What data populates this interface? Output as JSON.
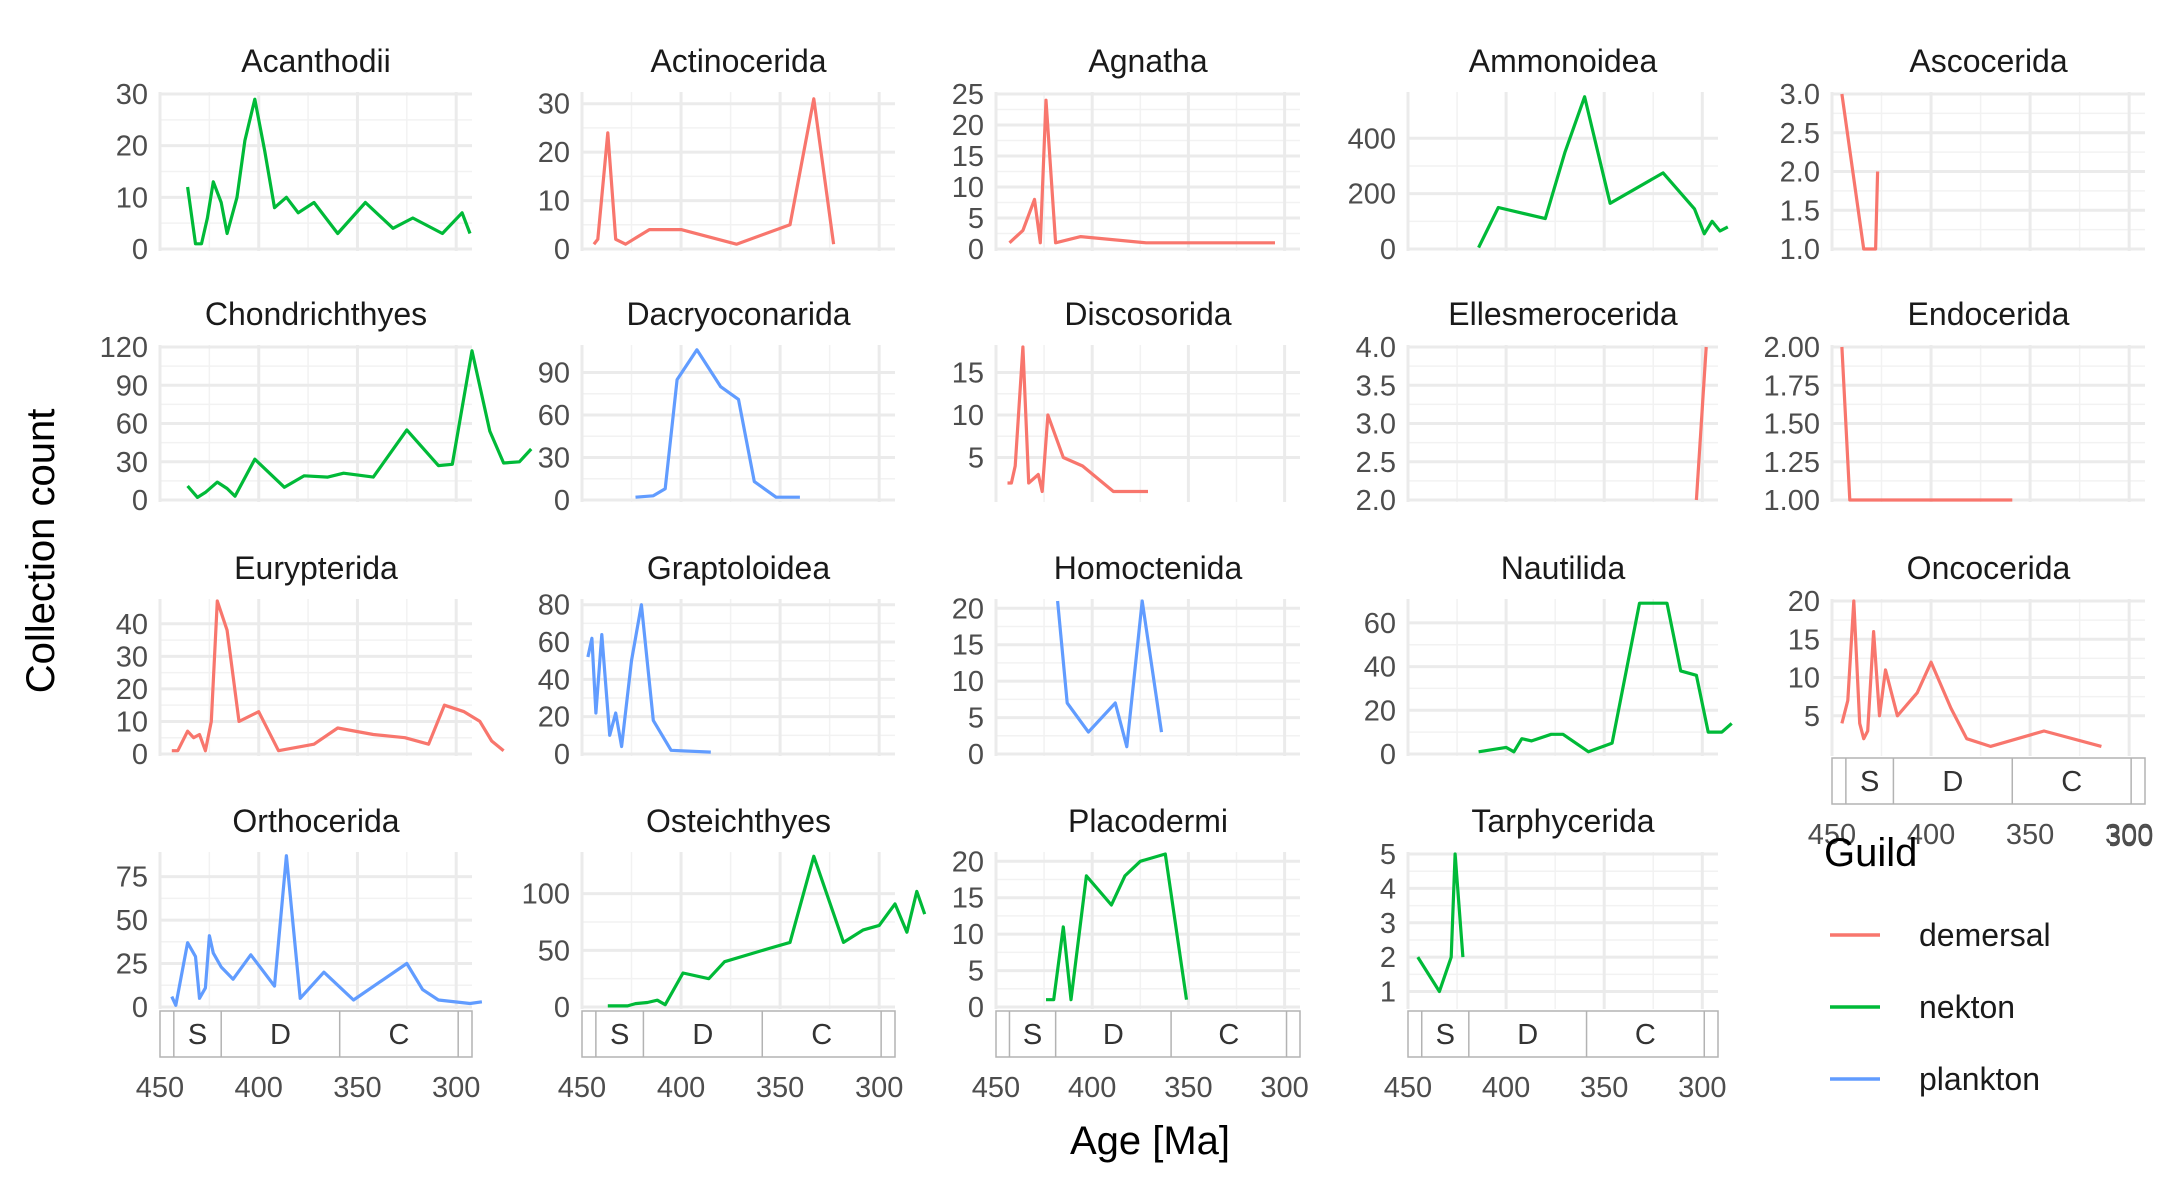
{
  "chart_data": {
    "type": "line",
    "xlabel": "Age [Ma]",
    "ylabel": "Collection count",
    "x_axis": "reversed",
    "xlim": [
      450,
      292
    ],
    "x_ticks": [
      450,
      400,
      350,
      300
    ],
    "grid": true,
    "legend": {
      "title": "Guild",
      "placement": "right",
      "entries": [
        {
          "name": "demersal",
          "color": "#F8766D"
        },
        {
          "name": "nekton",
          "color": "#00BA38"
        },
        {
          "name": "plankton",
          "color": "#619CFF"
        }
      ]
    },
    "period_bar": {
      "shown_under": [
        "Oncocerida",
        "Orthocerida",
        "Osteichthyes",
        "Placodermi",
        "Tarphycerida"
      ],
      "periods": [
        {
          "label": "",
          "start": 485,
          "end": 443
        },
        {
          "label": "S",
          "start": 443,
          "end": 419
        },
        {
          "label": "D",
          "start": 419,
          "end": 359
        },
        {
          "label": "C",
          "start": 359,
          "end": 299
        },
        {
          "label": "",
          "start": 299,
          "end": 252
        }
      ]
    },
    "panels": [
      {
        "title": "Acanthodii",
        "guild": "nekton",
        "yticks": [
          0,
          10,
          20,
          30
        ],
        "ylim": [
          0,
          30
        ],
        "points": [
          [
            436,
            12
          ],
          [
            432,
            1
          ],
          [
            429,
            1
          ],
          [
            426,
            6
          ],
          [
            423,
            13
          ],
          [
            419,
            9
          ],
          [
            416,
            3
          ],
          [
            411,
            10
          ],
          [
            407,
            21
          ],
          [
            402,
            29
          ],
          [
            397,
            19
          ],
          [
            392,
            8
          ],
          [
            386,
            10
          ],
          [
            380,
            7
          ],
          [
            372,
            9
          ],
          [
            360,
            3
          ],
          [
            346,
            9
          ],
          [
            332,
            4
          ],
          [
            322,
            6
          ],
          [
            307,
            3
          ],
          [
            297,
            7
          ],
          [
            293,
            3
          ]
        ]
      },
      {
        "title": "Actinocerida",
        "guild": "demersal",
        "yticks": [
          0,
          10,
          20,
          30
        ],
        "ylim": [
          0,
          32
        ],
        "points": [
          [
            444,
            1
          ],
          [
            442,
            2
          ],
          [
            437,
            24
          ],
          [
            433,
            2
          ],
          [
            428,
            1
          ],
          [
            424,
            2
          ],
          [
            416,
            4
          ],
          [
            400,
            4
          ],
          [
            372,
            1
          ],
          [
            345,
            5
          ],
          [
            333,
            31
          ],
          [
            323,
            1
          ]
        ]
      },
      {
        "title": "Agnatha",
        "guild": "demersal",
        "yticks": [
          0,
          5,
          10,
          15,
          20,
          25
        ],
        "ylim": [
          0,
          25
        ],
        "points": [
          [
            443,
            1
          ],
          [
            436,
            3
          ],
          [
            430,
            8
          ],
          [
            427,
            1
          ],
          [
            424,
            24
          ],
          [
            419,
            1
          ],
          [
            406,
            2
          ],
          [
            372,
            1
          ],
          [
            305,
            1
          ]
        ]
      },
      {
        "title": "Ammonoidea",
        "guild": "nekton",
        "yticks": [
          0,
          200,
          400
        ],
        "ylim": [
          0,
          560
        ],
        "points": [
          [
            414,
            5
          ],
          [
            404,
            150
          ],
          [
            380,
            110
          ],
          [
            370,
            350
          ],
          [
            360,
            550
          ],
          [
            347,
            165
          ],
          [
            320,
            275
          ],
          [
            304,
            145
          ],
          [
            299,
            55
          ],
          [
            295,
            100
          ],
          [
            291,
            65
          ],
          [
            287,
            80
          ]
        ]
      },
      {
        "title": "Ascocerida",
        "guild": "demersal",
        "yticks": [
          1.0,
          1.5,
          2.0,
          2.5,
          3.0
        ],
        "ylim": [
          1.0,
          3.0
        ],
        "points": [
          [
            445,
            3
          ],
          [
            434,
            1
          ],
          [
            431,
            1
          ],
          [
            428,
            1
          ],
          [
            427,
            2
          ]
        ]
      },
      {
        "title": "Chondrichthyes",
        "guild": "nekton",
        "yticks": [
          0,
          30,
          60,
          90,
          120
        ],
        "ylim": [
          0,
          120
        ],
        "points": [
          [
            436,
            11
          ],
          [
            431,
            2
          ],
          [
            427,
            6
          ],
          [
            421,
            14
          ],
          [
            416,
            9
          ],
          [
            412,
            3
          ],
          [
            402,
            32
          ],
          [
            387,
            10
          ],
          [
            377,
            19
          ],
          [
            365,
            18
          ],
          [
            357,
            21
          ],
          [
            342,
            18
          ],
          [
            325,
            55
          ],
          [
            309,
            27
          ],
          [
            302,
            28
          ],
          [
            292,
            117
          ],
          [
            283,
            54
          ],
          [
            276,
            29
          ],
          [
            268,
            30
          ],
          [
            262,
            40
          ]
        ]
      },
      {
        "title": "Dacryoconarida",
        "guild": "plankton",
        "yticks": [
          0,
          30,
          60,
          90
        ],
        "ylim": [
          0,
          108
        ],
        "points": [
          [
            423,
            2
          ],
          [
            414,
            3
          ],
          [
            408,
            8
          ],
          [
            402,
            85
          ],
          [
            392,
            106
          ],
          [
            380,
            80
          ],
          [
            371,
            71
          ],
          [
            363,
            13
          ],
          [
            352,
            2
          ],
          [
            340,
            2
          ]
        ]
      },
      {
        "title": "Discosorida",
        "guild": "demersal",
        "yticks": [
          5,
          10,
          15
        ],
        "ylim": [
          0,
          18
        ],
        "points": [
          [
            444,
            2
          ],
          [
            442,
            2
          ],
          [
            440,
            4
          ],
          [
            436,
            18
          ],
          [
            433,
            2
          ],
          [
            428,
            3
          ],
          [
            426,
            1
          ],
          [
            423,
            10
          ],
          [
            415,
            5
          ],
          [
            405,
            4
          ],
          [
            389,
            1
          ],
          [
            371,
            1
          ]
        ]
      },
      {
        "title": "Ellesmerocerida",
        "guild": "demersal",
        "yticks": [
          2.0,
          2.5,
          3.0,
          3.5,
          4.0
        ],
        "ylim": [
          2.0,
          4.0
        ],
        "points": [
          [
            303,
            2
          ],
          [
            298,
            4
          ]
        ]
      },
      {
        "title": "Endocerida",
        "guild": "demersal",
        "yticks": [
          1.0,
          1.25,
          1.5,
          1.75,
          2.0
        ],
        "ylim": [
          1.0,
          2.0
        ],
        "points": [
          [
            445,
            2
          ],
          [
            441,
            1
          ],
          [
            359,
            1
          ]
        ]
      },
      {
        "title": "Eurypterida",
        "guild": "demersal",
        "yticks": [
          0,
          10,
          20,
          30,
          40
        ],
        "ylim": [
          0,
          47
        ],
        "points": [
          [
            444,
            1
          ],
          [
            441,
            1
          ],
          [
            436,
            7
          ],
          [
            433,
            5
          ],
          [
            430,
            6
          ],
          [
            427,
            1
          ],
          [
            424,
            10
          ],
          [
            421,
            47
          ],
          [
            416,
            38
          ],
          [
            410,
            10
          ],
          [
            400,
            13
          ],
          [
            390,
            1
          ],
          [
            372,
            3
          ],
          [
            360,
            8
          ],
          [
            342,
            6
          ],
          [
            326,
            5
          ],
          [
            314,
            3
          ],
          [
            306,
            15
          ],
          [
            296,
            13
          ],
          [
            288,
            10
          ],
          [
            282,
            4
          ],
          [
            276,
            1
          ]
        ]
      },
      {
        "title": "Graptoloidea",
        "guild": "plankton",
        "yticks": [
          0,
          20,
          40,
          60,
          80
        ],
        "ylim": [
          0,
          82
        ],
        "points": [
          [
            447,
            52
          ],
          [
            445,
            62
          ],
          [
            443,
            22
          ],
          [
            440,
            64
          ],
          [
            436,
            10
          ],
          [
            433,
            22
          ],
          [
            430,
            4
          ],
          [
            425,
            50
          ],
          [
            420,
            80
          ],
          [
            414,
            18
          ],
          [
            405,
            2
          ],
          [
            385,
            1
          ]
        ]
      },
      {
        "title": "Homoctenida",
        "guild": "plankton",
        "yticks": [
          0,
          5,
          10,
          15,
          20
        ],
        "ylim": [
          0,
          21
        ],
        "points": [
          [
            418,
            21
          ],
          [
            413,
            7
          ],
          [
            402,
            3
          ],
          [
            388,
            7
          ],
          [
            382,
            1
          ],
          [
            374,
            21
          ],
          [
            364,
            3
          ]
        ]
      },
      {
        "title": "Nautilida",
        "guild": "nekton",
        "yticks": [
          0,
          20,
          40,
          60
        ],
        "ylim": [
          0,
          70
        ],
        "points": [
          [
            414,
            1
          ],
          [
            400,
            3
          ],
          [
            396,
            1
          ],
          [
            392,
            7
          ],
          [
            387,
            6
          ],
          [
            377,
            9
          ],
          [
            371,
            9
          ],
          [
            358,
            1
          ],
          [
            346,
            5
          ],
          [
            332,
            69
          ],
          [
            318,
            69
          ],
          [
            311,
            38
          ],
          [
            303,
            36
          ],
          [
            297,
            10
          ],
          [
            290,
            10
          ],
          [
            285,
            14
          ]
        ]
      },
      {
        "title": "Oncocerida",
        "guild": "demersal",
        "yticks": [
          5,
          10,
          15,
          20
        ],
        "ylim": [
          0,
          20
        ],
        "points": [
          [
            445,
            4
          ],
          [
            442,
            7
          ],
          [
            439,
            20
          ],
          [
            436,
            4
          ],
          [
            434,
            2
          ],
          [
            432,
            3
          ],
          [
            429,
            16
          ],
          [
            426,
            5
          ],
          [
            423,
            11
          ],
          [
            417,
            5
          ],
          [
            407,
            8
          ],
          [
            400,
            12
          ],
          [
            390,
            6
          ],
          [
            382,
            2
          ],
          [
            370,
            1
          ],
          [
            343,
            3
          ],
          [
            314,
            1
          ]
        ]
      },
      {
        "title": "Orthocerida",
        "guild": "plankton",
        "yticks": [
          0,
          25,
          50,
          75
        ],
        "ylim": [
          0,
          88
        ],
        "points": [
          [
            444,
            6
          ],
          [
            442,
            1
          ],
          [
            436,
            37
          ],
          [
            432,
            29
          ],
          [
            430,
            5
          ],
          [
            427,
            11
          ],
          [
            425,
            41
          ],
          [
            423,
            31
          ],
          [
            419,
            23
          ],
          [
            413,
            16
          ],
          [
            404,
            30
          ],
          [
            392,
            12
          ],
          [
            386,
            87
          ],
          [
            379,
            5
          ],
          [
            367,
            20
          ],
          [
            352,
            4
          ],
          [
            325,
            25
          ],
          [
            317,
            10
          ],
          [
            309,
            4
          ],
          [
            293,
            2
          ],
          [
            287,
            3
          ]
        ]
      },
      {
        "title": "Osteichthyes",
        "guild": "nekton",
        "yticks": [
          0,
          50,
          100
        ],
        "ylim": [
          0,
          135
        ],
        "points": [
          [
            437,
            1
          ],
          [
            427,
            1
          ],
          [
            423,
            3
          ],
          [
            417,
            4
          ],
          [
            412,
            6
          ],
          [
            408,
            2
          ],
          [
            399,
            30
          ],
          [
            386,
            25
          ],
          [
            378,
            40
          ],
          [
            355,
            52
          ],
          [
            345,
            57
          ],
          [
            333,
            133
          ],
          [
            318,
            57
          ],
          [
            308,
            68
          ],
          [
            300,
            72
          ],
          [
            292,
            91
          ],
          [
            286,
            66
          ],
          [
            281,
            102
          ],
          [
            277,
            82
          ]
        ]
      },
      {
        "title": "Placodermi",
        "guild": "nekton",
        "yticks": [
          0,
          5,
          10,
          15,
          20
        ],
        "ylim": [
          0,
          21
        ],
        "points": [
          [
            424,
            1
          ],
          [
            420,
            1
          ],
          [
            415,
            11
          ],
          [
            411,
            1
          ],
          [
            403,
            18
          ],
          [
            390,
            14
          ],
          [
            383,
            18
          ],
          [
            375,
            20
          ],
          [
            362,
            21
          ],
          [
            351,
            1
          ]
        ]
      },
      {
        "title": "Tarphycerida",
        "guild": "nekton",
        "yticks": [
          1,
          2,
          3,
          4,
          5
        ],
        "ylim": [
          0.55,
          5
        ],
        "points": [
          [
            445,
            2
          ],
          [
            434,
            1
          ],
          [
            428,
            2
          ],
          [
            426,
            5
          ],
          [
            422,
            2
          ]
        ]
      }
    ]
  }
}
